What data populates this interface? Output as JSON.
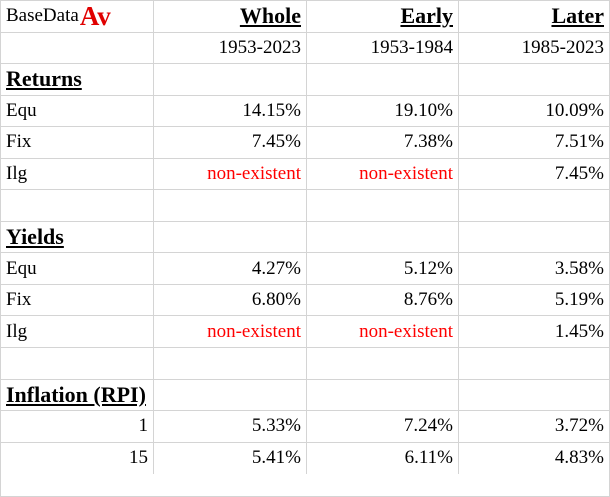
{
  "header": {
    "brand": "BaseData",
    "brand_suffix": "Av",
    "brand_suffix_color": "#e00000",
    "columns": [
      "Whole",
      "Early",
      "Later"
    ],
    "periods": [
      "1953-2023",
      "1953-1984",
      "1985-2023"
    ]
  },
  "returns": {
    "title": "Returns",
    "rows": [
      {
        "label": "Equ",
        "values": [
          "14.15%",
          "19.10%",
          "10.09%"
        ]
      },
      {
        "label": "Fix",
        "values": [
          "7.45%",
          "7.38%",
          "7.51%"
        ]
      },
      {
        "label": "Ilg",
        "values": [
          "non-existent",
          "non-existent",
          "7.45%"
        ]
      }
    ]
  },
  "yields": {
    "title": "Yields",
    "rows": [
      {
        "label": "Equ",
        "values": [
          "4.27%",
          "5.12%",
          "3.58%"
        ]
      },
      {
        "label": "Fix",
        "values": [
          "6.80%",
          "8.76%",
          "5.19%"
        ]
      },
      {
        "label": "Ilg",
        "values": [
          "non-existent",
          "non-existent",
          "1.45%"
        ]
      }
    ]
  },
  "inflation": {
    "title": "Inflation (RPI)",
    "rows": [
      {
        "label": "1",
        "values": [
          "5.33%",
          "7.24%",
          "3.72%"
        ]
      },
      {
        "label": "15",
        "values": [
          "5.41%",
          "6.11%",
          "4.83%"
        ]
      }
    ]
  },
  "colors": {
    "non_existent_text": "#ff0000",
    "gridline": "#d4d4d4"
  }
}
